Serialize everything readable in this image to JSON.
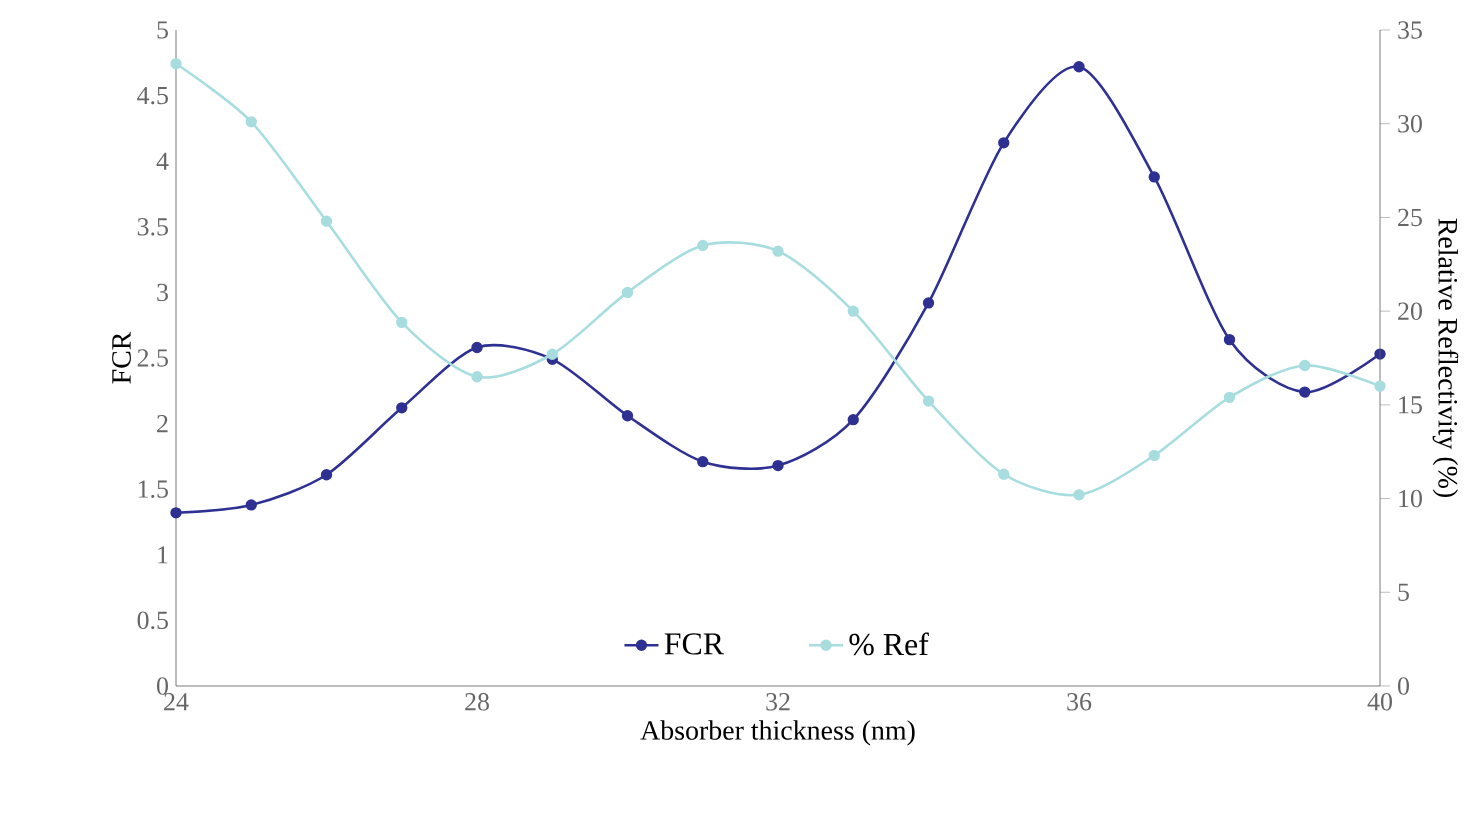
{
  "chart_data": {
    "type": "line",
    "xlabel": "Absorber thickness (nm)",
    "ylabel": "FCR",
    "y2label": "Relative Reflectivity (%)",
    "x": [
      24,
      25,
      26,
      27,
      28,
      29,
      30,
      31,
      32,
      33,
      34,
      35,
      36,
      37,
      38,
      39,
      40
    ],
    "series": [
      {
        "name": "FCR",
        "color": "#2e3192",
        "values": [
          1.32,
          1.38,
          1.61,
          2.12,
          2.58,
          2.49,
          2.06,
          1.71,
          1.68,
          2.03,
          2.92,
          4.14,
          4.72,
          3.88,
          2.64,
          2.24,
          2.53
        ]
      },
      {
        "name": "% Ref",
        "color": "#a8dde0",
        "axis": "y2",
        "values": [
          33.2,
          30.1,
          24.8,
          19.4,
          16.5,
          17.7,
          21.0,
          23.5,
          23.2,
          20.0,
          15.2,
          11.3,
          10.2,
          12.3,
          15.4,
          17.1,
          16.0
        ]
      }
    ],
    "xlim": [
      24,
      40
    ],
    "xticks": [
      24,
      28,
      32,
      36,
      40
    ],
    "ylim": [
      0,
      5
    ],
    "yticks": [
      0,
      0.5,
      1,
      1.5,
      2,
      2.5,
      3,
      3.5,
      4,
      4.5,
      5
    ],
    "y2lim": [
      0,
      35
    ],
    "y2ticks": [
      0,
      5,
      10,
      15,
      20,
      25,
      30,
      35
    ],
    "legend": "bottom",
    "marker": "circle",
    "line_style": "solid",
    "grid": false
  }
}
